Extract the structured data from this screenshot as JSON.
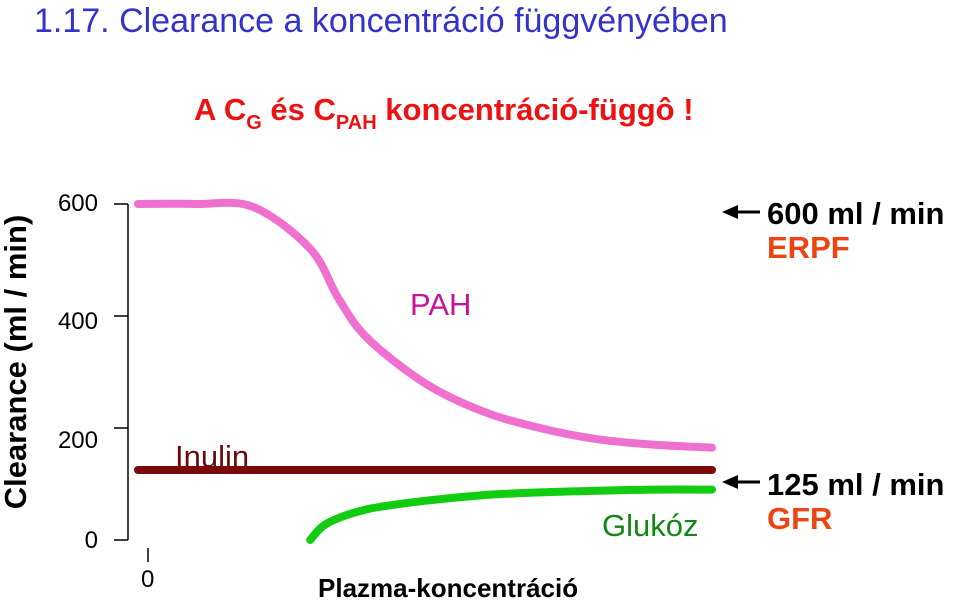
{
  "slide": {
    "title": "1.17. Clearance a koncentráció függvényében",
    "subtitle_parts": {
      "a": "A C",
      "g": "G",
      "es": " és C",
      "pah": "PAH",
      "rest": " koncentráció-függô !"
    }
  },
  "colors": {
    "title": "#3333cc",
    "subtitle": "#ee1111",
    "pah": "#f070d0",
    "inulin": "#7a0a0a",
    "glukoz": "#11cc11",
    "pah_label": "#cc1199",
    "inulin_label": "#6a0a0a",
    "glukoz_label": "#118811",
    "tag": "#ee4411"
  },
  "chart_data": {
    "type": "line",
    "title": "",
    "xlabel": "Plazma-koncentráció",
    "ylabel": "Clearance (ml / min)",
    "ylim": [
      0,
      600
    ],
    "y_ticks": [
      0,
      200,
      400,
      600
    ],
    "x_ticks": [
      "0"
    ],
    "x_scale": "qualitative",
    "xlim": [
      0,
      100
    ],
    "grid": false,
    "series": [
      {
        "name": "PAH",
        "x": [
          0,
          10,
          20,
          30,
          35,
          40,
          50,
          60,
          70,
          80,
          90,
          100
        ],
        "values": [
          600,
          600,
          595,
          520,
          430,
          360,
          280,
          230,
          200,
          180,
          170,
          165
        ]
      },
      {
        "name": "Inulin",
        "x": [
          0,
          100
        ],
        "values": [
          125,
          125
        ]
      },
      {
        "name": "Glukóz",
        "x": [
          30,
          33,
          40,
          50,
          60,
          70,
          80,
          90,
          100
        ],
        "values": [
          0,
          30,
          55,
          70,
          80,
          85,
          88,
          90,
          90
        ]
      }
    ],
    "annotations": [
      {
        "value_text": "600 ml / min",
        "tag": "ERPF"
      },
      {
        "value_text": "125 ml / min",
        "tag": "GFR"
      }
    ]
  }
}
